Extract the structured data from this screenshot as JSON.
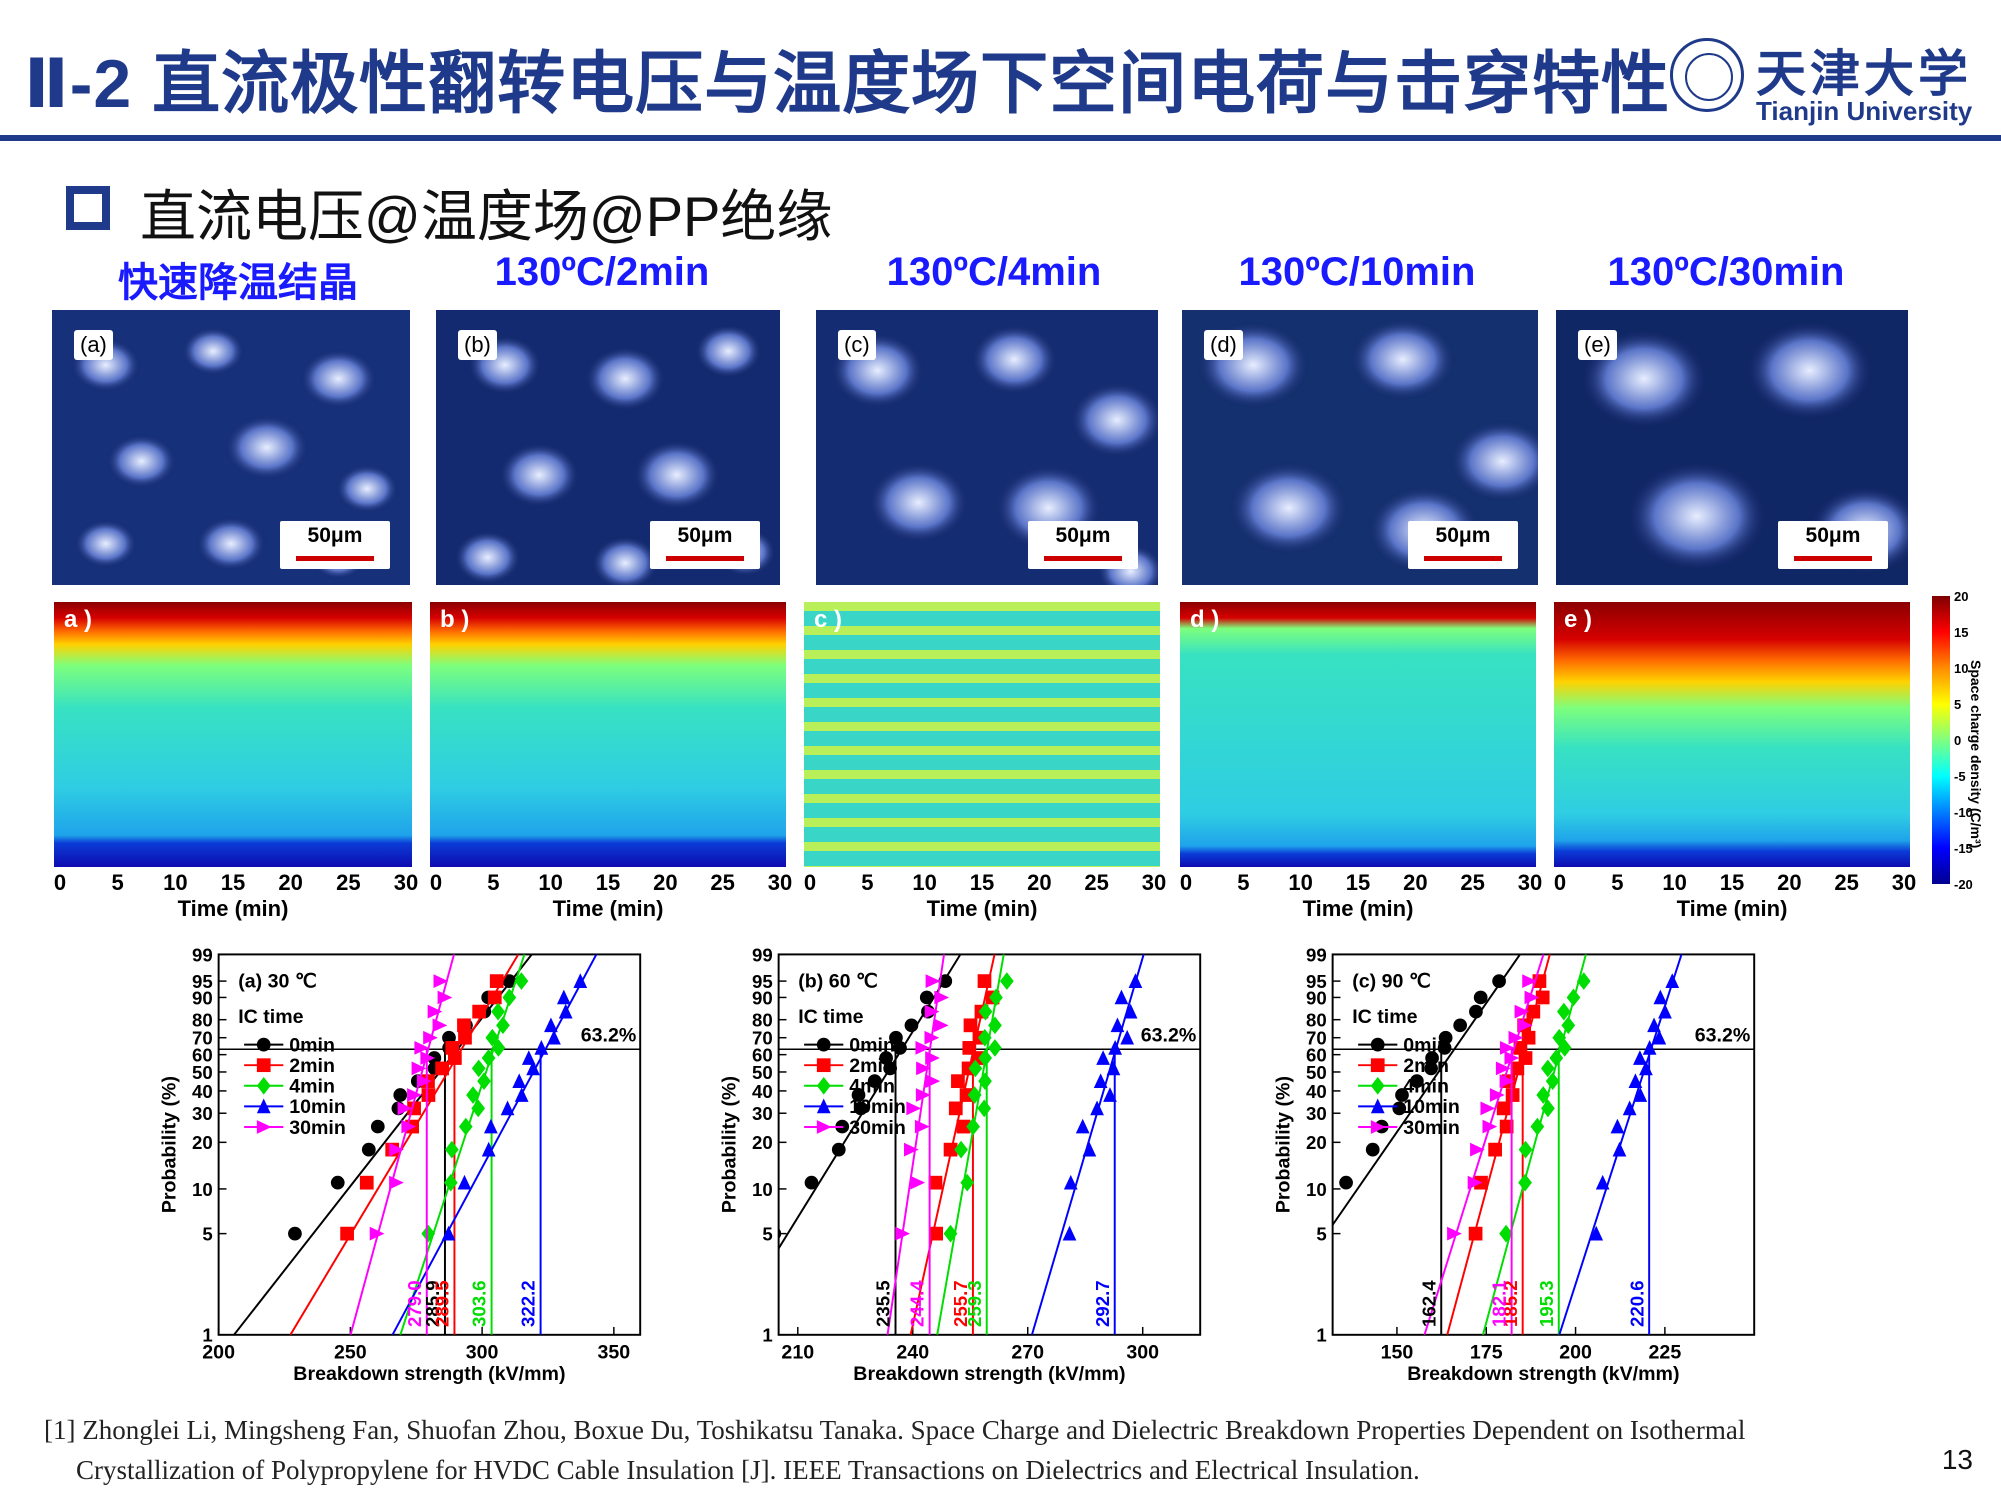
{
  "title": "Ⅱ-2 直流极性翻转电压与温度场下空间电荷与击穿特性",
  "logo": {
    "name_cn": "天津大学",
    "name_en": "Tianjin University"
  },
  "section": "直流电压@温度场@PP绝缘",
  "columns": [
    {
      "label": "快速降温结晶",
      "tag": "(a)",
      "heat_tag": "a )",
      "scale": "50μm"
    },
    {
      "label": "130ºC/2min",
      "tag": "(b)",
      "heat_tag": "b )",
      "scale": "50μm"
    },
    {
      "label": "130ºC/4min",
      "tag": "(c)",
      "heat_tag": "c )",
      "scale": "50μm"
    },
    {
      "label": "130ºC/10min",
      "tag": "(d)",
      "heat_tag": "d )",
      "scale": "50μm"
    },
    {
      "label": "130ºC/30min",
      "tag": "(e)",
      "heat_tag": "e )",
      "scale": "50μm"
    }
  ],
  "time_axis": {
    "label": "Time (min)",
    "ticks": [
      "0",
      "5",
      "10",
      "15",
      "20",
      "25",
      "30"
    ]
  },
  "colorbar": {
    "label": "Space charge density (C/m³)",
    "ticks": [
      "20",
      "15",
      "10",
      "5",
      "0",
      "-5",
      "-10",
      "-15",
      "-20"
    ]
  },
  "chart_data": [
    {
      "type": "scatter",
      "title": "(a) 30 ℃",
      "legend_title": "IC time",
      "xlabel": "Breakdown strength (kV/mm)",
      "ylabel": "Probability (%)",
      "xlim": [
        200,
        360
      ],
      "x_ticks": [
        200,
        250,
        300,
        350
      ],
      "ylim": [
        1,
        99
      ],
      "y_ticks": [
        1,
        5,
        10,
        20,
        30,
        40,
        50,
        60,
        70,
        80,
        90,
        95,
        99
      ],
      "ref_label": "63.2%",
      "series": [
        {
          "name": "0min",
          "color": "#000000",
          "marker": "circle",
          "scale": 285.9,
          "scale_label": "285.9",
          "beta": 14
        },
        {
          "name": "2min",
          "color": "#ff0000",
          "marker": "square",
          "scale": 289.5,
          "scale_label": "289.5",
          "beta": 19
        },
        {
          "name": "4min",
          "color": "#00dd00",
          "marker": "diamond",
          "scale": 303.6,
          "scale_label": "303.6",
          "beta": 38
        },
        {
          "name": "10min",
          "color": "#0000ff",
          "marker": "triangle",
          "scale": 322.2,
          "scale_label": "322.2",
          "beta": 24
        },
        {
          "name": "30min",
          "color": "#ff00ff",
          "marker": "tri-right",
          "scale": 279.0,
          "scale_label": "279.0",
          "beta": 42
        }
      ]
    },
    {
      "type": "scatter",
      "title": "(b) 60 ℃",
      "legend_title": "IC time",
      "xlabel": "Breakdown strength (kV/mm)",
      "ylabel": "Probability (%)",
      "xlim": [
        205,
        315
      ],
      "x_ticks": [
        210,
        240,
        270,
        300
      ],
      "ylim": [
        1,
        99
      ],
      "y_ticks": [
        1,
        5,
        10,
        20,
        30,
        40,
        50,
        60,
        70,
        80,
        90,
        95,
        99
      ],
      "ref_label": "63.2%",
      "series": [
        {
          "name": "0min",
          "color": "#000000",
          "marker": "circle",
          "scale": 235.5,
          "scale_label": "235.5",
          "beta": 22
        },
        {
          "name": "2min",
          "color": "#ff0000",
          "marker": "square",
          "scale": 255.7,
          "scale_label": "255.7",
          "beta": 70
        },
        {
          "name": "4min",
          "color": "#00dd00",
          "marker": "diamond",
          "scale": 259.3,
          "scale_label": "259.3",
          "beta": 90
        },
        {
          "name": "10min",
          "color": "#0000ff",
          "marker": "triangle",
          "scale": 292.7,
          "scale_label": "292.7",
          "beta": 60
        },
        {
          "name": "30min",
          "color": "#ff00ff",
          "marker": "tri-right",
          "scale": 244.4,
          "scale_label": "244.4",
          "beta": 100
        }
      ]
    },
    {
      "type": "scatter",
      "title": "(c) 90 ℃",
      "legend_title": "IC time",
      "xlabel": "Breakdown strength (kV/mm)",
      "ylabel": "Probability (%)",
      "xlim": [
        132,
        250
      ],
      "x_ticks": [
        150,
        175,
        200,
        225
      ],
      "ylim": [
        1,
        99
      ],
      "y_ticks": [
        1,
        5,
        10,
        20,
        30,
        40,
        50,
        60,
        70,
        80,
        90,
        95,
        99
      ],
      "ref_label": "63.2%",
      "series": [
        {
          "name": "0min",
          "color": "#000000",
          "marker": "circle",
          "scale": 162.4,
          "scale_label": "162.4",
          "beta": 12
        },
        {
          "name": "2min",
          "color": "#ff0000",
          "marker": "square",
          "scale": 185.2,
          "scale_label": "185.2",
          "beta": 38
        },
        {
          "name": "4min",
          "color": "#00dd00",
          "marker": "diamond",
          "scale": 195.3,
          "scale_label": "195.3",
          "beta": 40
        },
        {
          "name": "10min",
          "color": "#0000ff",
          "marker": "triangle",
          "scale": 220.6,
          "scale_label": "220.6",
          "beta": 38
        },
        {
          "name": "30min",
          "color": "#ff00ff",
          "marker": "tri-right",
          "scale": 182.1,
          "scale_label": "182.1",
          "beta": 32
        }
      ]
    }
  ],
  "reference": {
    "line1": "[1] Zhonglei  Li, Mingsheng  Fan, Shuofan  Zhou, Boxue  Du, Toshikatsu  Tanaka. Space Charge and Dielectric Breakdown Properties Dependent on Isothermal",
    "line2": "Crystallization of Polypropylene for HVDC Cable Insulation [J]. IEEE Transactions on Dielectrics and Electrical Insulation."
  },
  "page_number": "13"
}
